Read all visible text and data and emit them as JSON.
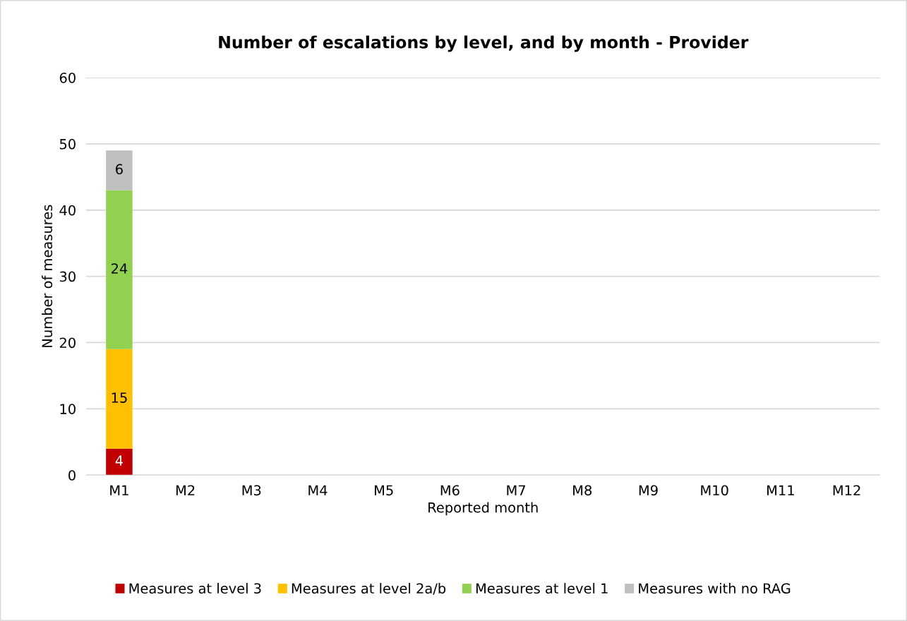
{
  "chart_data": {
    "type": "bar",
    "title": "Number of escalations by level, and by month - Provider",
    "xlabel": "Reported month",
    "ylabel": "Number of measures",
    "categories": [
      "M1",
      "M2",
      "M3",
      "M4",
      "M5",
      "M6",
      "M7",
      "M8",
      "M9",
      "M10",
      "M11",
      "M12"
    ],
    "stacked": true,
    "series": [
      {
        "name": "Measures at level 3",
        "color": "#c00000",
        "values": [
          4,
          null,
          null,
          null,
          null,
          null,
          null,
          null,
          null,
          null,
          null,
          null
        ]
      },
      {
        "name": "Measures at level 2a/b",
        "color": "#ffc000",
        "values": [
          15,
          null,
          null,
          null,
          null,
          null,
          null,
          null,
          null,
          null,
          null,
          null
        ]
      },
      {
        "name": "Measures at level 1",
        "color": "#92d050",
        "values": [
          24,
          null,
          null,
          null,
          null,
          null,
          null,
          null,
          null,
          null,
          null,
          null
        ]
      },
      {
        "name": "Measures with no RAG",
        "color": "#bfbfbf",
        "values": [
          6,
          null,
          null,
          null,
          null,
          null,
          null,
          null,
          null,
          null,
          null,
          null
        ]
      }
    ],
    "ylim": [
      0,
      60
    ],
    "yticks": [
      0,
      10,
      20,
      30,
      40,
      50,
      60
    ],
    "grid": "y",
    "legend": "bottom",
    "data_labels": true
  }
}
